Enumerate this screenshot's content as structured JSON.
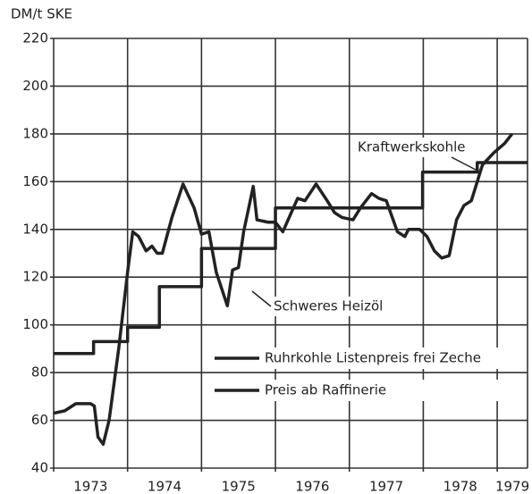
{
  "chart_data": {
    "type": "line",
    "y_label": "DM/t SKE",
    "xlim": [
      1973,
      1979.41
    ],
    "xticks": [
      1973,
      1974,
      1975,
      1976,
      1977,
      1978,
      1979
    ],
    "ylim": [
      40,
      220
    ],
    "yticks": [
      40,
      60,
      80,
      100,
      120,
      140,
      160,
      180,
      200,
      220
    ],
    "grid": true,
    "legend": "lower right",
    "series": [
      {
        "name": "Ruhrkohle Listenpreis frei Zeche",
        "color": "#222222",
        "x": [
          1973,
          1973.54,
          1973.54,
          1974.0,
          1974.0,
          1974.43,
          1974.43,
          1975.0,
          1975.0,
          1976.0,
          1976.0,
          1977.99,
          1977.99,
          1978.73,
          1978.73,
          1979.41
        ],
        "values": [
          88,
          88,
          93,
          93,
          99,
          99,
          116,
          116,
          132,
          132,
          149,
          149,
          164,
          164,
          168,
          168
        ]
      },
      {
        "name": "Preis ab Raffinerie",
        "color": "#222222",
        "x": [
          1973.0,
          1973.15,
          1973.3,
          1973.5,
          1973.55,
          1973.6,
          1973.67,
          1973.75,
          1973.88,
          1974.0,
          1974.07,
          1974.15,
          1974.25,
          1974.33,
          1974.4,
          1974.47,
          1974.6,
          1974.75,
          1974.9,
          1975.0,
          1975.1,
          1975.2,
          1975.35,
          1975.42,
          1975.5,
          1975.57,
          1975.7,
          1975.75,
          1975.9,
          1976.0,
          1976.1,
          1976.2,
          1976.3,
          1976.4,
          1976.55,
          1976.7,
          1976.8,
          1976.9,
          1977.05,
          1977.15,
          1977.3,
          1977.4,
          1977.5,
          1977.65,
          1977.75,
          1977.8,
          1977.95,
          1978.05,
          1978.15,
          1978.25,
          1978.35,
          1978.45,
          1978.55,
          1978.65,
          1978.8,
          1978.95,
          1979.1,
          1979.2
        ],
        "values": [
          63,
          64,
          67,
          67,
          66,
          53,
          50,
          60,
          90,
          122,
          139,
          137,
          131,
          133,
          130,
          130,
          145,
          159,
          149,
          138,
          139,
          122,
          108,
          123,
          124,
          139,
          158,
          144,
          143,
          143,
          139,
          146,
          153,
          152,
          159,
          152,
          147,
          145,
          144,
          149,
          155,
          153,
          152,
          139,
          137,
          140,
          140,
          137,
          131,
          128,
          129,
          144,
          150,
          152,
          167,
          172,
          176,
          180
        ]
      }
    ],
    "annotations": [
      "Kraftwerkskohle",
      "Schweres Heizöl"
    ]
  }
}
